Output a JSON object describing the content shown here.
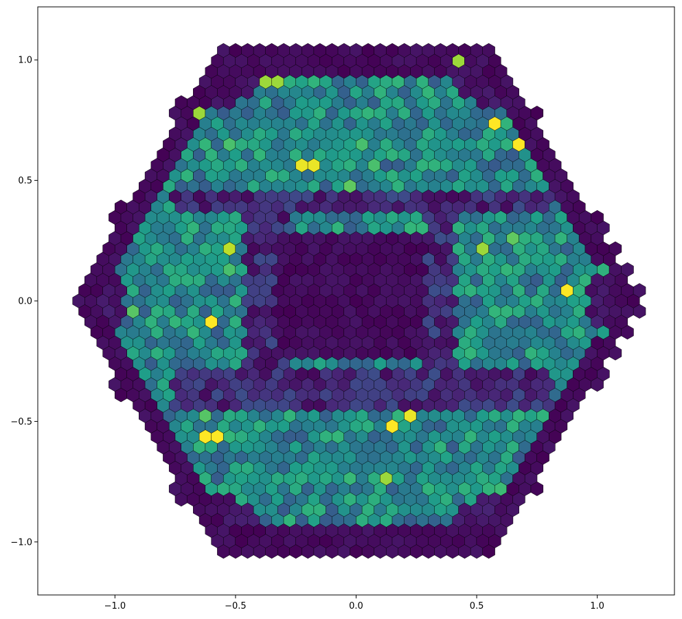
{
  "chart_data": {
    "type": "heatmap",
    "title": "",
    "xlabel": "",
    "ylabel": "",
    "xlim": [
      -1.32,
      1.32
    ],
    "ylim": [
      -1.22,
      1.22
    ],
    "grid": false,
    "legend": "none",
    "x_ticks": [
      {
        "value": -1.0,
        "label": "−1.0"
      },
      {
        "value": -0.5,
        "label": "−0.5"
      },
      {
        "value": 0.0,
        "label": "0.0"
      },
      {
        "value": 0.5,
        "label": "0.5"
      },
      {
        "value": 1.0,
        "label": "1.0"
      }
    ],
    "y_ticks": [
      {
        "value": 1.0,
        "label": "1.0"
      },
      {
        "value": 0.5,
        "label": "0.5"
      },
      {
        "value": 0.0,
        "label": "0.0"
      },
      {
        "value": -0.5,
        "label": "−0.5"
      },
      {
        "value": -1.0,
        "label": "−1.0"
      }
    ],
    "hex_grid": {
      "layout": "hexagonal tiling of hexagonal cells, edge-colored black",
      "cell_spacing": 0.05,
      "outer_hexagon_radius": 1.19,
      "colormap": "viridis",
      "value_range": [
        0,
        1
      ]
    },
    "regions": [
      {
        "name": "outer rim",
        "level": 0.02
      },
      {
        "name": "central square",
        "x_range": [
          -0.33,
          0.28
        ],
        "y_range": [
          -0.25,
          0.27
        ],
        "level": 0.03
      },
      {
        "name": "separator strip y=0.4",
        "x_range": [
          -0.75,
          0.8
        ],
        "y_range": [
          0.35,
          0.45
        ],
        "level": 0.08
      },
      {
        "name": "separator strip y=-0.38",
        "x_range": [
          -0.75,
          0.8
        ],
        "y_range": [
          -0.45,
          -0.3
        ],
        "level": 0.1
      },
      {
        "name": "separator strip x=-0.38",
        "x_range": [
          -0.45,
          -0.3
        ],
        "y_range": [
          -0.4,
          0.4
        ],
        "level": 0.1
      },
      {
        "name": "separator strip x=0.35",
        "x_range": [
          0.28,
          0.4
        ],
        "y_range": [
          -0.4,
          0.4
        ],
        "level": 0.1
      },
      {
        "name": "active area",
        "level_range": [
          0.3,
          0.7
        ]
      }
    ],
    "highlighted_cells": [
      {
        "x": -0.6,
        "y": -0.57,
        "value": 1.0
      },
      {
        "x": -0.6,
        "y": -0.07,
        "value": 1.0
      },
      {
        "x": 0.15,
        "y": -0.5,
        "value": 1.0
      },
      {
        "x": 0.23,
        "y": -0.49,
        "value": 0.97
      },
      {
        "x": 0.57,
        "y": 0.72,
        "value": 1.0
      },
      {
        "x": 0.67,
        "y": 0.64,
        "value": 1.0
      },
      {
        "x": 0.88,
        "y": 0.02,
        "value": 1.0
      },
      {
        "x": -0.2,
        "y": 0.57,
        "value": 0.97
      },
      {
        "x": 0.14,
        "y": -0.73,
        "value": 0.85
      },
      {
        "x": -0.67,
        "y": 0.79,
        "value": 0.85
      },
      {
        "x": 0.54,
        "y": 0.23,
        "value": 0.85
      },
      {
        "x": -0.53,
        "y": 0.23,
        "value": 0.9
      },
      {
        "x": -0.35,
        "y": 0.9,
        "value": 0.85
      },
      {
        "x": 0.43,
        "y": 0.98,
        "value": 0.85
      }
    ]
  }
}
